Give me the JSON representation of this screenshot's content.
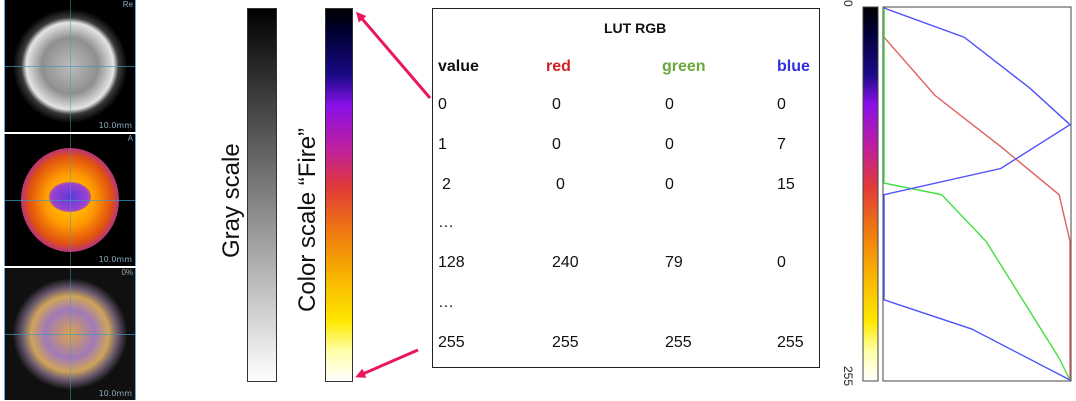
{
  "brain_images": {
    "panels": [
      {
        "kind": "mri",
        "corner_text": "Re",
        "scale_text": "10.0mm"
      },
      {
        "kind": "pet",
        "corner_text": "A",
        "scale_text": "10.0mm"
      },
      {
        "kind": "fused",
        "corner_text": "0%",
        "scale_text": "10.0mm"
      }
    ]
  },
  "labels": {
    "gray_scale": "Gray scale",
    "color_scale": "Color scale  “Fire”"
  },
  "lut": {
    "title": "LUT   RGB",
    "headers": [
      {
        "text": "value",
        "color": "#111111"
      },
      {
        "text": "red",
        "color": "#d62020"
      },
      {
        "text": "green",
        "color": "#6aa83a"
      },
      {
        "text": "blue",
        "color": "#3030e0"
      }
    ],
    "rows": [
      [
        "0",
        "0",
        "0",
        "0"
      ],
      [
        "1",
        "0",
        "0",
        "7"
      ],
      [
        "2",
        "0",
        "0",
        "15"
      ],
      [
        "…",
        "",
        "",
        ""
      ],
      [
        "128",
        "240",
        "79",
        "0"
      ],
      [
        "…",
        "",
        "",
        ""
      ],
      [
        "255",
        "255",
        "255",
        "255"
      ]
    ]
  },
  "plot": {
    "tick_top": "0",
    "tick_bottom": "255",
    "colors": {
      "red": "#e06060",
      "green": "#40e040",
      "blue": "#5050ff"
    }
  },
  "chart_data": {
    "type": "line",
    "x_axis": "value (0 at top, 255 at bottom)",
    "xlim": [
      0,
      255
    ],
    "ylim": [
      0,
      255
    ],
    "series": [
      {
        "name": "red",
        "x": [
          0,
          20,
          60,
          95,
          128,
          160,
          200,
          255
        ],
        "values": [
          0,
          0,
          70,
          160,
          240,
          255,
          255,
          255
        ]
      },
      {
        "name": "green",
        "x": [
          0,
          120,
          128,
          160,
          200,
          240,
          255
        ],
        "values": [
          0,
          0,
          79,
          140,
          190,
          240,
          255
        ]
      },
      {
        "name": "blue",
        "x": [
          0,
          20,
          55,
          80,
          110,
          128,
          200,
          220,
          255
        ],
        "values": [
          0,
          110,
          200,
          255,
          160,
          0,
          0,
          120,
          255
        ]
      }
    ]
  }
}
